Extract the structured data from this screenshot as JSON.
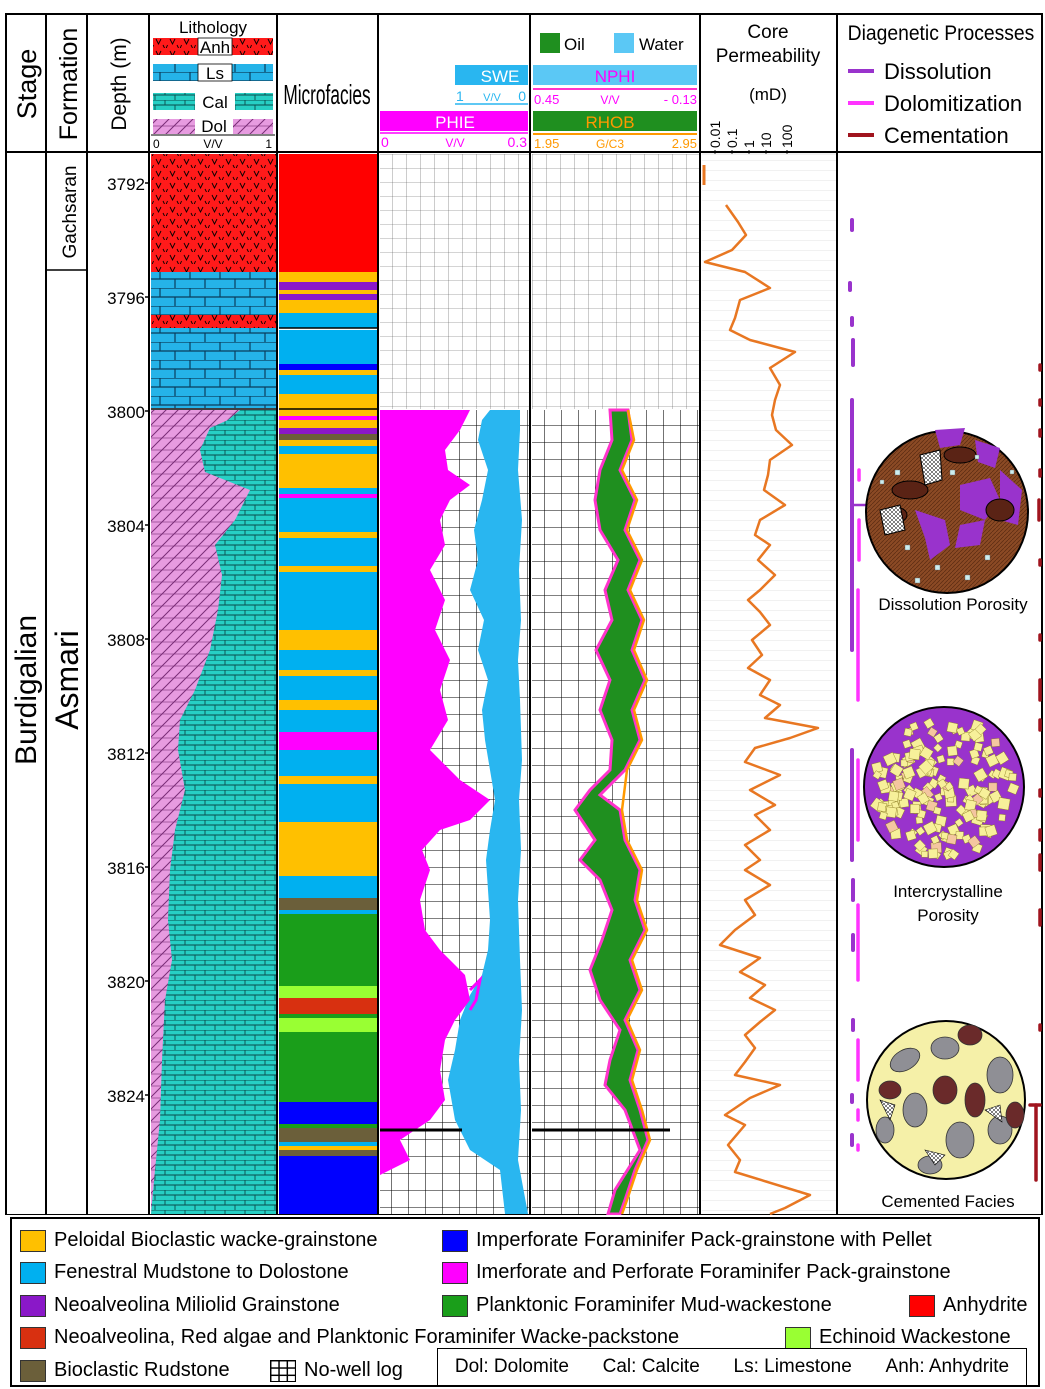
{
  "headers": {
    "stage": "Stage",
    "formation": "Formation",
    "depth": "Depth (m)",
    "lithology": "Lithology",
    "lith_labels": [
      "Anh",
      "Ls",
      "Cal",
      "Dol"
    ],
    "lith_scale": {
      "min": "0",
      "unit": "V/V",
      "max": "1"
    },
    "microfacies": "Microfacies",
    "swe": {
      "name": "SWE",
      "left": "1",
      "unit": "V/V",
      "right": "0"
    },
    "phie": {
      "name": "PHIE",
      "left": "0",
      "unit": "V/V",
      "right": "0.3"
    },
    "fluid_oil": "Oil",
    "fluid_water": "Water",
    "nphi": {
      "name": "NPHI",
      "left": "0.45",
      "unit": "V/V",
      "right": "- 0.13"
    },
    "rhob": {
      "name": "RHOB",
      "left": "1.95",
      "unit": "G/C3",
      "right": "2.95"
    },
    "perm_title_1": "Core",
    "perm_title_2": "Permeability",
    "perm_unit": "(mD)",
    "perm_ticks": [
      "0.01",
      "0.1",
      "1",
      "10",
      "100"
    ],
    "diag_title": "Diagenetic Processes",
    "diag_items": [
      {
        "label": "Dissolution",
        "color": "#9933cc"
      },
      {
        "label": "Dolomitization",
        "color": "#ff33ff"
      },
      {
        "label": "Cementation",
        "color": "#a0141e"
      }
    ]
  },
  "stage_name": "Burdigalian",
  "formations": [
    "Gachsaran",
    "Asmari"
  ],
  "depth_ticks": [
    3792,
    3796,
    3800,
    3804,
    3808,
    3812,
    3816,
    3820,
    3824
  ],
  "depth_range": [
    3791,
    3828
  ],
  "photo_labels": [
    "Dissolution Porosity",
    "Intercrystalline Porosity",
    "Cemented Facies"
  ],
  "microfacies_colors": {
    "P": "#ffc000",
    "F": "#00b0f0",
    "N": "#8a18c8",
    "R": "#d83010",
    "B": "#6b5f3a",
    "I": "#0000ff",
    "M": "#ff00ff",
    "G": "#1a9e1a",
    "E": "#99ff33",
    "A": "#ff0000"
  },
  "legend": [
    {
      "label": "Peloidal Bioclastic wacke-grainstone",
      "color": "#ffc000"
    },
    {
      "label": "Fenestral Mudstone to Dolostone",
      "color": "#00b0f0"
    },
    {
      "label": "Neoalveolina Miliolid Grainstone",
      "color": "#8a18c8"
    },
    {
      "label": "Neoalveolina, Red algae and Planktonic Foraminifer Wacke-packstone",
      "color": "#d83010"
    },
    {
      "label": "Bioclastic Rudstone",
      "color": "#6b5f3a"
    },
    {
      "label": "No-well log",
      "color": "grid"
    },
    {
      "label": "Imperforate Foraminifer Pack-grainstone with Pellet",
      "color": "#0000ff"
    },
    {
      "label": "Imerforate and Perforate Foraminifer Pack-grainstone",
      "color": "#ff00ff"
    },
    {
      "label": "Planktonic Foraminifer Mud-wackestone",
      "color": "#1a9e1a"
    },
    {
      "label": "Anhydrite",
      "color": "#ff0000"
    },
    {
      "label": "Echinoid Wackestone",
      "color": "#99ff33"
    }
  ],
  "abbreviations": [
    "Dol: Dolomite",
    "Cal: Calcite",
    "Ls: Limestone",
    "Anh: Anhydrite"
  ]
}
